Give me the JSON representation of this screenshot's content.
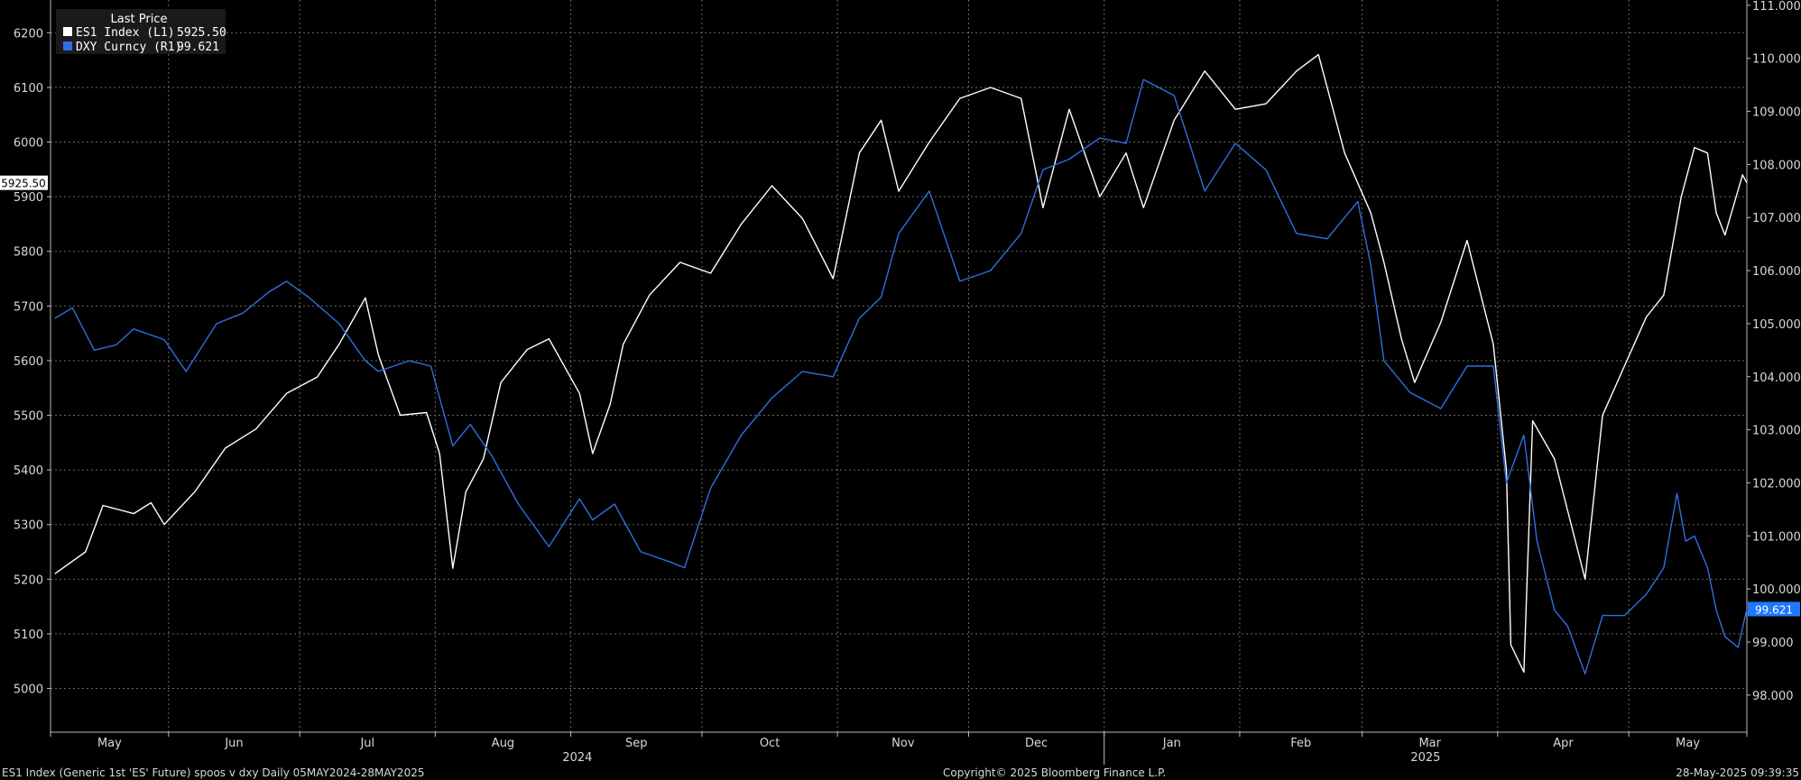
{
  "legend": {
    "title": "Last Price",
    "entries": [
      {
        "label": "ES1 Index  (L1)",
        "value": "5925.50",
        "color": "#ffffff"
      },
      {
        "label": "DXY Curncy  (R1)",
        "value": "99.621",
        "color": "#2f6fe0"
      }
    ]
  },
  "footer": {
    "left": "ES1 Index (Generic 1st 'ES' Future) spoos v dxy  Daily 05MAY2024-28MAY2025",
    "center": "Copyright© 2025 Bloomberg Finance L.P.",
    "right": "28-May-2025 09:39:35"
  },
  "chart_data": {
    "type": "line",
    "date_range": [
      "2024-05-05",
      "2025-05-28"
    ],
    "x_month_labels": [
      "May",
      "Jun",
      "Jul",
      "Aug",
      "Sep",
      "Oct",
      "Nov",
      "Dec",
      "Jan",
      "Feb",
      "Mar",
      "Apr",
      "May"
    ],
    "x_year_labels": [
      "2024",
      "2025"
    ],
    "left_axis": {
      "min": 4920,
      "max": 6260,
      "ticks": [
        "5000",
        "5100",
        "5200",
        "5300",
        "5400",
        "5500",
        "5600",
        "5700",
        "5800",
        "5900",
        "6000",
        "6100",
        "6200"
      ]
    },
    "right_axis": {
      "min": 97.3,
      "max": 111.1,
      "ticks": [
        "98.000",
        "99.000",
        "100.000",
        "101.000",
        "102.000",
        "103.000",
        "104.000",
        "105.000",
        "106.000",
        "107.000",
        "108.000",
        "109.000",
        "110.000",
        "111.000"
      ]
    },
    "grid": true,
    "legend_position": "top-left",
    "last_value_labels": {
      "left": "5925.50",
      "right": "99.621"
    },
    "series": [
      {
        "name": "ES1 Index  (L1)",
        "axis": "left",
        "color": "#ffffff",
        "points": [
          [
            "2024-05-06",
            5210
          ],
          [
            "2024-05-13",
            5250
          ],
          [
            "2024-05-17",
            5335
          ],
          [
            "2024-05-24",
            5320
          ],
          [
            "2024-05-28",
            5340
          ],
          [
            "2024-05-31",
            5300
          ],
          [
            "2024-06-07",
            5360
          ],
          [
            "2024-06-14",
            5440
          ],
          [
            "2024-06-21",
            5475
          ],
          [
            "2024-06-28",
            5540
          ],
          [
            "2024-07-05",
            5570
          ],
          [
            "2024-07-10",
            5630
          ],
          [
            "2024-07-16",
            5715
          ],
          [
            "2024-07-19",
            5610
          ],
          [
            "2024-07-24",
            5500
          ],
          [
            "2024-07-30",
            5505
          ],
          [
            "2024-08-02",
            5430
          ],
          [
            "2024-08-05",
            5220
          ],
          [
            "2024-08-08",
            5360
          ],
          [
            "2024-08-12",
            5420
          ],
          [
            "2024-08-16",
            5560
          ],
          [
            "2024-08-22",
            5620
          ],
          [
            "2024-08-27",
            5640
          ],
          [
            "2024-09-03",
            5540
          ],
          [
            "2024-09-06",
            5430
          ],
          [
            "2024-09-10",
            5520
          ],
          [
            "2024-09-13",
            5630
          ],
          [
            "2024-09-19",
            5720
          ],
          [
            "2024-09-26",
            5780
          ],
          [
            "2024-10-03",
            5760
          ],
          [
            "2024-10-10",
            5850
          ],
          [
            "2024-10-17",
            5920
          ],
          [
            "2024-10-24",
            5860
          ],
          [
            "2024-10-31",
            5750
          ],
          [
            "2024-11-06",
            5980
          ],
          [
            "2024-11-11",
            6040
          ],
          [
            "2024-11-15",
            5910
          ],
          [
            "2024-11-22",
            6000
          ],
          [
            "2024-11-29",
            6080
          ],
          [
            "2024-12-06",
            6100
          ],
          [
            "2024-12-13",
            6080
          ],
          [
            "2024-12-18",
            5880
          ],
          [
            "2024-12-24",
            6060
          ],
          [
            "2024-12-31",
            5900
          ],
          [
            "2025-01-06",
            5980
          ],
          [
            "2025-01-10",
            5880
          ],
          [
            "2025-01-17",
            6040
          ],
          [
            "2025-01-24",
            6130
          ],
          [
            "2025-01-31",
            6060
          ],
          [
            "2025-02-07",
            6070
          ],
          [
            "2025-02-14",
            6130
          ],
          [
            "2025-02-19",
            6160
          ],
          [
            "2025-02-25",
            5980
          ],
          [
            "2025-03-03",
            5870
          ],
          [
            "2025-03-06",
            5780
          ],
          [
            "2025-03-10",
            5640
          ],
          [
            "2025-03-13",
            5560
          ],
          [
            "2025-03-19",
            5670
          ],
          [
            "2025-03-25",
            5820
          ],
          [
            "2025-03-31",
            5630
          ],
          [
            "2025-04-03",
            5400
          ],
          [
            "2025-04-04",
            5080
          ],
          [
            "2025-04-07",
            5030
          ],
          [
            "2025-04-09",
            5490
          ],
          [
            "2025-04-14",
            5420
          ],
          [
            "2025-04-21",
            5200
          ],
          [
            "2025-04-25",
            5500
          ],
          [
            "2025-04-30",
            5590
          ],
          [
            "2025-05-05",
            5680
          ],
          [
            "2025-05-09",
            5720
          ],
          [
            "2025-05-13",
            5900
          ],
          [
            "2025-05-16",
            5990
          ],
          [
            "2025-05-19",
            5980
          ],
          [
            "2025-05-21",
            5870
          ],
          [
            "2025-05-23",
            5830
          ],
          [
            "2025-05-27",
            5940
          ],
          [
            "2025-05-28",
            5925.5
          ]
        ]
      },
      {
        "name": "DXY Curncy  (R1)",
        "axis": "right",
        "color": "#2f6fe0",
        "points": [
          [
            "2024-05-06",
            105.1
          ],
          [
            "2024-05-10",
            105.3
          ],
          [
            "2024-05-15",
            104.5
          ],
          [
            "2024-05-20",
            104.6
          ],
          [
            "2024-05-24",
            104.9
          ],
          [
            "2024-05-31",
            104.7
          ],
          [
            "2024-06-05",
            104.1
          ],
          [
            "2024-06-12",
            105.0
          ],
          [
            "2024-06-18",
            105.2
          ],
          [
            "2024-06-24",
            105.6
          ],
          [
            "2024-06-28",
            105.8
          ],
          [
            "2024-07-03",
            105.5
          ],
          [
            "2024-07-10",
            105.0
          ],
          [
            "2024-07-16",
            104.3
          ],
          [
            "2024-07-19",
            104.1
          ],
          [
            "2024-07-26",
            104.3
          ],
          [
            "2024-07-31",
            104.2
          ],
          [
            "2024-08-05",
            102.7
          ],
          [
            "2024-08-09",
            103.1
          ],
          [
            "2024-08-14",
            102.5
          ],
          [
            "2024-08-20",
            101.6
          ],
          [
            "2024-08-27",
            100.8
          ],
          [
            "2024-09-03",
            101.7
          ],
          [
            "2024-09-06",
            101.3
          ],
          [
            "2024-09-11",
            101.6
          ],
          [
            "2024-09-17",
            100.7
          ],
          [
            "2024-09-24",
            100.5
          ],
          [
            "2024-09-27",
            100.4
          ],
          [
            "2024-10-03",
            101.9
          ],
          [
            "2024-10-10",
            102.9
          ],
          [
            "2024-10-17",
            103.6
          ],
          [
            "2024-10-24",
            104.1
          ],
          [
            "2024-10-31",
            104.0
          ],
          [
            "2024-11-06",
            105.1
          ],
          [
            "2024-11-11",
            105.5
          ],
          [
            "2024-11-15",
            106.7
          ],
          [
            "2024-11-22",
            107.5
          ],
          [
            "2024-11-29",
            105.8
          ],
          [
            "2024-12-06",
            106.0
          ],
          [
            "2024-12-13",
            106.7
          ],
          [
            "2024-12-18",
            107.9
          ],
          [
            "2024-12-24",
            108.1
          ],
          [
            "2024-12-31",
            108.5
          ],
          [
            "2025-01-06",
            108.4
          ],
          [
            "2025-01-10",
            109.6
          ],
          [
            "2025-01-17",
            109.3
          ],
          [
            "2025-01-24",
            107.5
          ],
          [
            "2025-01-31",
            108.4
          ],
          [
            "2025-02-07",
            107.9
          ],
          [
            "2025-02-14",
            106.7
          ],
          [
            "2025-02-21",
            106.6
          ],
          [
            "2025-02-28",
            107.3
          ],
          [
            "2025-03-03",
            106.1
          ],
          [
            "2025-03-06",
            104.3
          ],
          [
            "2025-03-12",
            103.7
          ],
          [
            "2025-03-19",
            103.4
          ],
          [
            "2025-03-25",
            104.2
          ],
          [
            "2025-03-31",
            104.2
          ],
          [
            "2025-04-03",
            102.0
          ],
          [
            "2025-04-07",
            102.9
          ],
          [
            "2025-04-10",
            100.9
          ],
          [
            "2025-04-14",
            99.6
          ],
          [
            "2025-04-17",
            99.3
          ],
          [
            "2025-04-21",
            98.4
          ],
          [
            "2025-04-25",
            99.5
          ],
          [
            "2025-04-30",
            99.5
          ],
          [
            "2025-05-05",
            99.9
          ],
          [
            "2025-05-09",
            100.4
          ],
          [
            "2025-05-12",
            101.8
          ],
          [
            "2025-05-14",
            100.9
          ],
          [
            "2025-05-16",
            101.0
          ],
          [
            "2025-05-19",
            100.4
          ],
          [
            "2025-05-21",
            99.6
          ],
          [
            "2025-05-23",
            99.1
          ],
          [
            "2025-05-26",
            98.9
          ],
          [
            "2025-05-28",
            99.621
          ]
        ]
      }
    ]
  }
}
